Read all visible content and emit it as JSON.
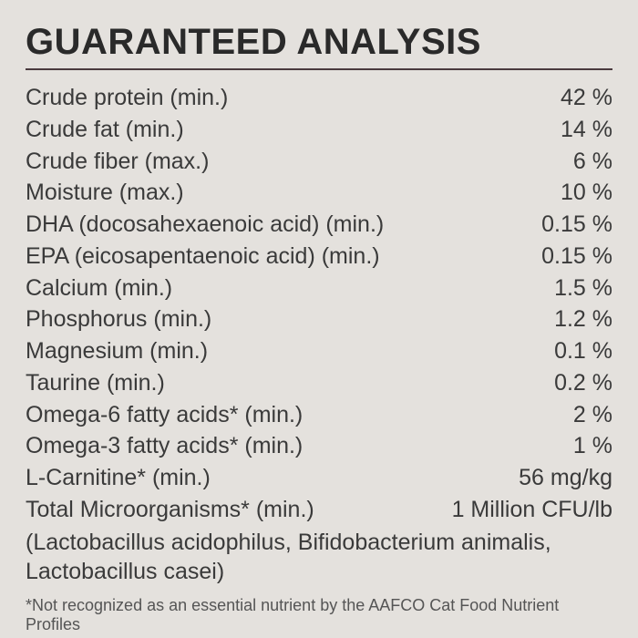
{
  "title": "GUARANTEED ANALYSIS",
  "colors": {
    "background": "#e4e1dd",
    "title": "#2a2a2a",
    "rule": "#4a3a3e",
    "text": "#3a3a3a",
    "footnote": "#555555"
  },
  "typography": {
    "title_fontsize": 40,
    "title_weight": 700,
    "row_fontsize": 25,
    "footnote_fontsize": 18
  },
  "rows": [
    {
      "label": "Crude protein (min.)",
      "value": "42 %"
    },
    {
      "label": "Crude fat (min.)",
      "value": "14 %"
    },
    {
      "label": "Crude fiber (max.)",
      "value": "6 %"
    },
    {
      "label": "Moisture (max.)",
      "value": "10 %"
    },
    {
      "label": "DHA (docosahexaenoic acid) (min.)",
      "value": "0.15 %"
    },
    {
      "label": "EPA (eicosapentaenoic acid) (min.)",
      "value": "0.15 %"
    },
    {
      "label": "Calcium (min.)",
      "value": "1.5 %"
    },
    {
      "label": "Phosphorus (min.)",
      "value": "1.2 %"
    },
    {
      "label": "Magnesium (min.)",
      "value": "0.1 %"
    },
    {
      "label": "Taurine (min.)",
      "value": "0.2 %"
    },
    {
      "label": "Omega-6 fatty acids* (min.)",
      "value": "2 %"
    },
    {
      "label": "Omega-3 fatty acids* (min.)",
      "value": "1 %"
    },
    {
      "label": "L-Carnitine* (min.)",
      "value": "56 mg/kg"
    },
    {
      "label": "Total Microorganisms* (min.)",
      "value": "1 Million CFU/lb"
    }
  ],
  "subnote": "(Lactobacillus acidophilus, Bifidobacterium animalis, Lactobacillus casei)",
  "footnote": "*Not recognized as an essential nutrient by the AAFCO Cat Food Nutrient Profiles"
}
